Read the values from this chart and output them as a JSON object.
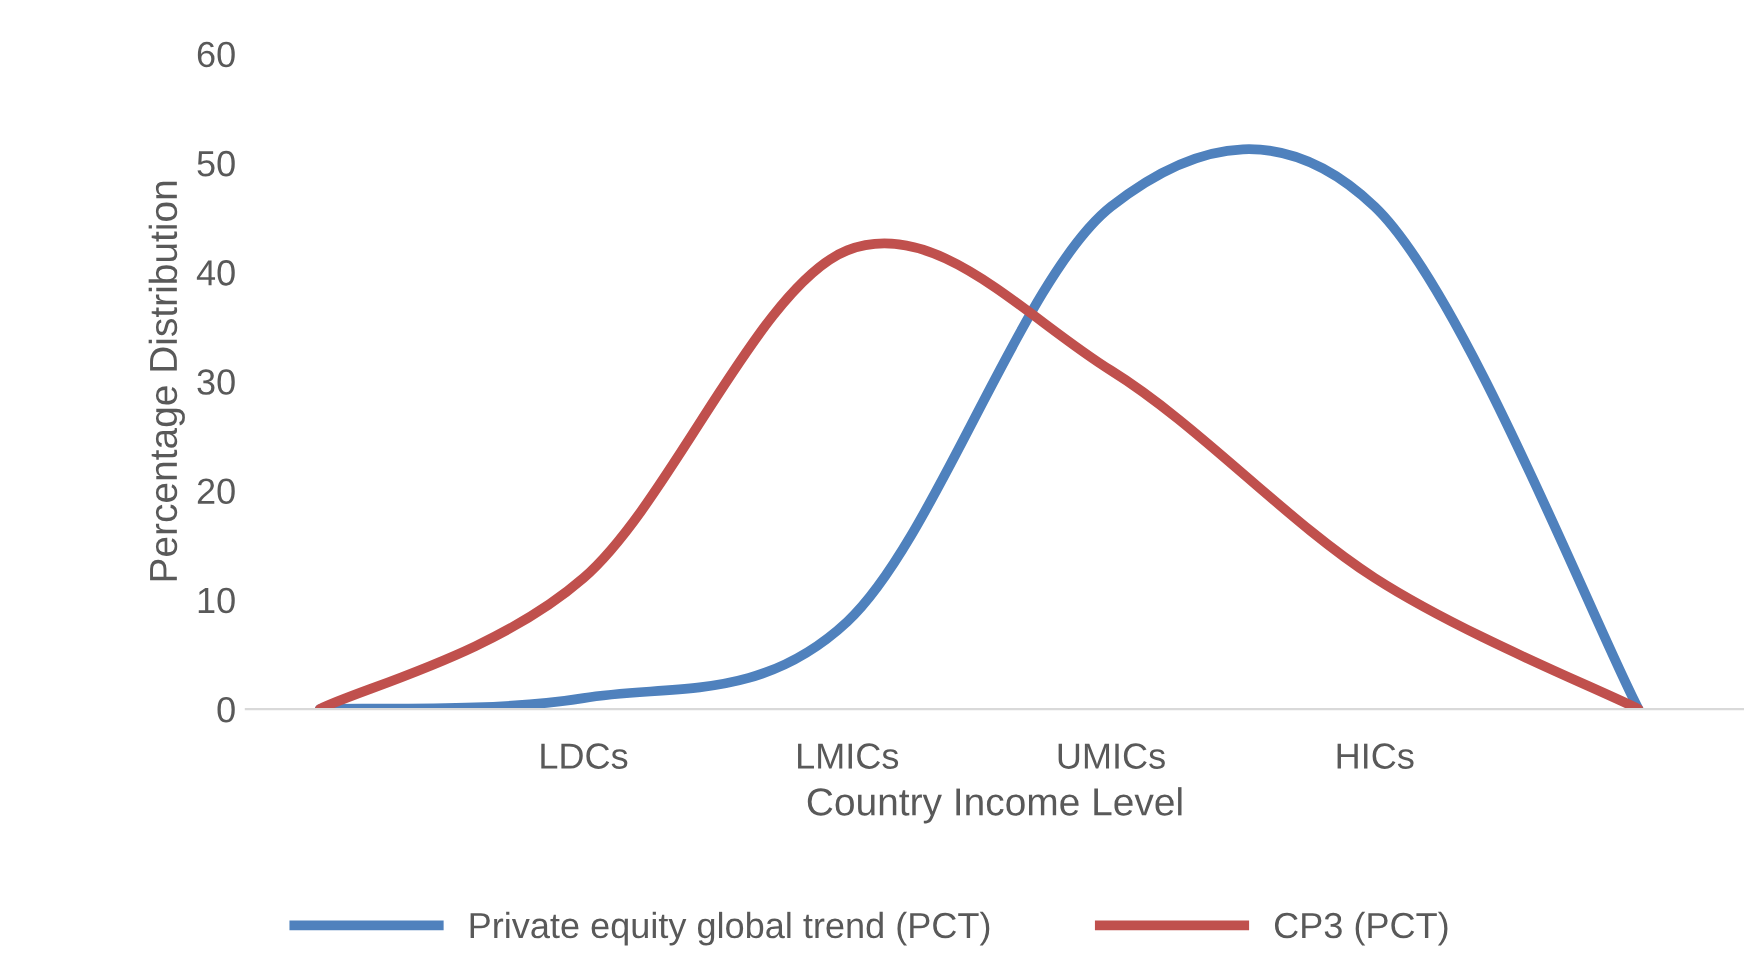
{
  "chart_data": {
    "type": "line",
    "xlabel": "Country Income Level",
    "ylabel": "Percentage Distribution",
    "categories": [
      null,
      "LDCs",
      "LMICs",
      "UMICs",
      "HICs",
      null
    ],
    "series": [
      {
        "name": "Private equity global trend (PCT)",
        "color": "#4f81bd",
        "values": [
          0,
          1,
          8,
          46,
          46,
          0
        ]
      },
      {
        "name": "CP3 (PCT)",
        "color": "#c0504d",
        "values": [
          0,
          12,
          42,
          31,
          12,
          0
        ]
      }
    ],
    "ylim": [
      0,
      60
    ],
    "yticks": [
      0,
      10,
      20,
      30,
      40,
      50,
      60
    ],
    "grid": false,
    "legend": "bottom",
    "marker": "none",
    "line_style": "solid"
  }
}
